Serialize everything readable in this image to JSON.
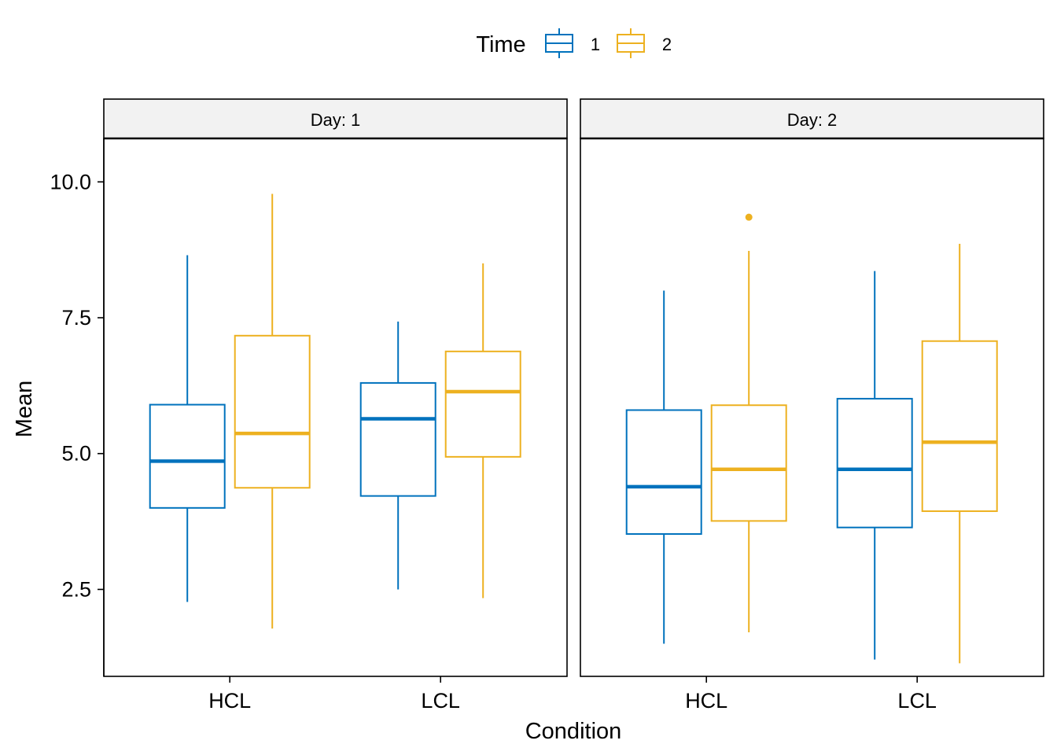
{
  "legend": {
    "title": "Time",
    "items": [
      {
        "label": "1",
        "color": "#0072BD"
      },
      {
        "label": "2",
        "color": "#EDB120"
      }
    ]
  },
  "chart_data": {
    "type": "boxplot",
    "xlabel": "Condition",
    "ylabel": "Mean",
    "ylim": [
      0.9,
      10.8
    ],
    "yticks": [
      "2.5",
      "5.0",
      "7.5",
      "10.0"
    ],
    "ytick_values": [
      2.5,
      5.0,
      7.5,
      10.0
    ],
    "categories": [
      "HCL",
      "LCL"
    ],
    "facet_label_prefix": "Day: ",
    "facets": [
      {
        "label": "Day: 1",
        "groups": [
          {
            "category": "HCL",
            "time": "1",
            "min": 2.27,
            "q1": 4.0,
            "median": 4.86,
            "q3": 5.9,
            "max": 8.65,
            "outliers": []
          },
          {
            "category": "HCL",
            "time": "2",
            "min": 1.78,
            "q1": 4.37,
            "median": 5.37,
            "q3": 7.17,
            "max": 9.78,
            "outliers": []
          },
          {
            "category": "LCL",
            "time": "1",
            "min": 2.5,
            "q1": 4.22,
            "median": 5.64,
            "q3": 6.3,
            "max": 7.43,
            "outliers": []
          },
          {
            "category": "LCL",
            "time": "2",
            "min": 2.34,
            "q1": 4.94,
            "median": 6.14,
            "q3": 6.88,
            "max": 8.5,
            "outliers": []
          }
        ]
      },
      {
        "label": "Day: 2",
        "groups": [
          {
            "category": "HCL",
            "time": "1",
            "min": 1.5,
            "q1": 3.52,
            "median": 4.39,
            "q3": 5.8,
            "max": 8.0,
            "outliers": []
          },
          {
            "category": "HCL",
            "time": "2",
            "min": 1.71,
            "q1": 3.76,
            "median": 4.71,
            "q3": 5.89,
            "max": 8.73,
            "outliers": [
              9.35
            ]
          },
          {
            "category": "LCL",
            "time": "1",
            "min": 1.21,
            "q1": 3.64,
            "median": 4.71,
            "q3": 6.01,
            "max": 8.36,
            "outliers": []
          },
          {
            "category": "LCL",
            "time": "2",
            "min": 1.14,
            "q1": 3.94,
            "median": 5.21,
            "q3": 7.07,
            "max": 8.86,
            "outliers": []
          }
        ]
      }
    ],
    "legend_position": "top",
    "grid": false
  }
}
